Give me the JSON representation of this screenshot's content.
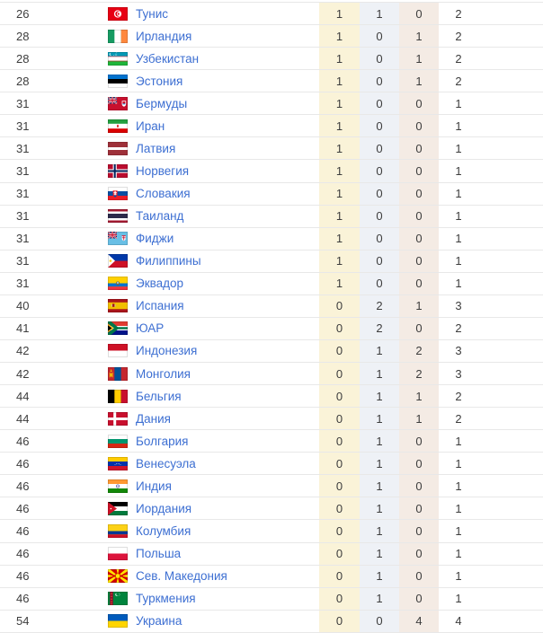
{
  "colors": {
    "gold_col_bg": "#faf3d8",
    "silver_col_bg": "#eef1f6",
    "bronze_col_bg": "#f4ebe4",
    "link_blue": "#3d6fd2",
    "text_dark": "#3d3d3d",
    "divider": "#e8e8e8"
  },
  "table": {
    "rows": [
      {
        "rank": "26",
        "country": "Тунис",
        "flag": "tunisia",
        "gold": "1",
        "silver": "1",
        "bronze": "0",
        "total": "2"
      },
      {
        "rank": "28",
        "country": "Ирландия",
        "flag": "ireland",
        "gold": "1",
        "silver": "0",
        "bronze": "1",
        "total": "2"
      },
      {
        "rank": "28",
        "country": "Узбекистан",
        "flag": "uzbekistan",
        "gold": "1",
        "silver": "0",
        "bronze": "1",
        "total": "2"
      },
      {
        "rank": "28",
        "country": "Эстония",
        "flag": "estonia",
        "gold": "1",
        "silver": "0",
        "bronze": "1",
        "total": "2"
      },
      {
        "rank": "31",
        "country": "Бермуды",
        "flag": "bermuda",
        "gold": "1",
        "silver": "0",
        "bronze": "0",
        "total": "1"
      },
      {
        "rank": "31",
        "country": "Иран",
        "flag": "iran",
        "gold": "1",
        "silver": "0",
        "bronze": "0",
        "total": "1"
      },
      {
        "rank": "31",
        "country": "Латвия",
        "flag": "latvia",
        "gold": "1",
        "silver": "0",
        "bronze": "0",
        "total": "1"
      },
      {
        "rank": "31",
        "country": "Норвегия",
        "flag": "norway",
        "gold": "1",
        "silver": "0",
        "bronze": "0",
        "total": "1"
      },
      {
        "rank": "31",
        "country": "Словакия",
        "flag": "slovakia",
        "gold": "1",
        "silver": "0",
        "bronze": "0",
        "total": "1"
      },
      {
        "rank": "31",
        "country": "Таиланд",
        "flag": "thailand",
        "gold": "1",
        "silver": "0",
        "bronze": "0",
        "total": "1"
      },
      {
        "rank": "31",
        "country": "Фиджи",
        "flag": "fiji",
        "gold": "1",
        "silver": "0",
        "bronze": "0",
        "total": "1"
      },
      {
        "rank": "31",
        "country": "Филиппины",
        "flag": "philippines",
        "gold": "1",
        "silver": "0",
        "bronze": "0",
        "total": "1"
      },
      {
        "rank": "31",
        "country": "Эквадор",
        "flag": "ecuador",
        "gold": "1",
        "silver": "0",
        "bronze": "0",
        "total": "1"
      },
      {
        "rank": "40",
        "country": "Испания",
        "flag": "spain",
        "gold": "0",
        "silver": "2",
        "bronze": "1",
        "total": "3"
      },
      {
        "rank": "41",
        "country": "ЮАР",
        "flag": "south-africa",
        "gold": "0",
        "silver": "2",
        "bronze": "0",
        "total": "2"
      },
      {
        "rank": "42",
        "country": "Индонезия",
        "flag": "indonesia",
        "gold": "0",
        "silver": "1",
        "bronze": "2",
        "total": "3"
      },
      {
        "rank": "42",
        "country": "Монголия",
        "flag": "mongolia",
        "gold": "0",
        "silver": "1",
        "bronze": "2",
        "total": "3"
      },
      {
        "rank": "44",
        "country": "Бельгия",
        "flag": "belgium",
        "gold": "0",
        "silver": "1",
        "bronze": "1",
        "total": "2"
      },
      {
        "rank": "44",
        "country": "Дания",
        "flag": "denmark",
        "gold": "0",
        "silver": "1",
        "bronze": "1",
        "total": "2"
      },
      {
        "rank": "46",
        "country": "Болгария",
        "flag": "bulgaria",
        "gold": "0",
        "silver": "1",
        "bronze": "0",
        "total": "1"
      },
      {
        "rank": "46",
        "country": "Венесуэла",
        "flag": "venezuela",
        "gold": "0",
        "silver": "1",
        "bronze": "0",
        "total": "1"
      },
      {
        "rank": "46",
        "country": "Индия",
        "flag": "india",
        "gold": "0",
        "silver": "1",
        "bronze": "0",
        "total": "1"
      },
      {
        "rank": "46",
        "country": "Иордания",
        "flag": "jordan",
        "gold": "0",
        "silver": "1",
        "bronze": "0",
        "total": "1"
      },
      {
        "rank": "46",
        "country": "Колумбия",
        "flag": "colombia",
        "gold": "0",
        "silver": "1",
        "bronze": "0",
        "total": "1"
      },
      {
        "rank": "46",
        "country": "Польша",
        "flag": "poland",
        "gold": "0",
        "silver": "1",
        "bronze": "0",
        "total": "1"
      },
      {
        "rank": "46",
        "country": "Сев. Македония",
        "flag": "north-macedonia",
        "gold": "0",
        "silver": "1",
        "bronze": "0",
        "total": "1"
      },
      {
        "rank": "46",
        "country": "Туркмения",
        "flag": "turkmenistan",
        "gold": "0",
        "silver": "1",
        "bronze": "0",
        "total": "1"
      },
      {
        "rank": "54",
        "country": "Украина",
        "flag": "ukraine",
        "gold": "0",
        "silver": "0",
        "bronze": "4",
        "total": "4"
      }
    ]
  }
}
